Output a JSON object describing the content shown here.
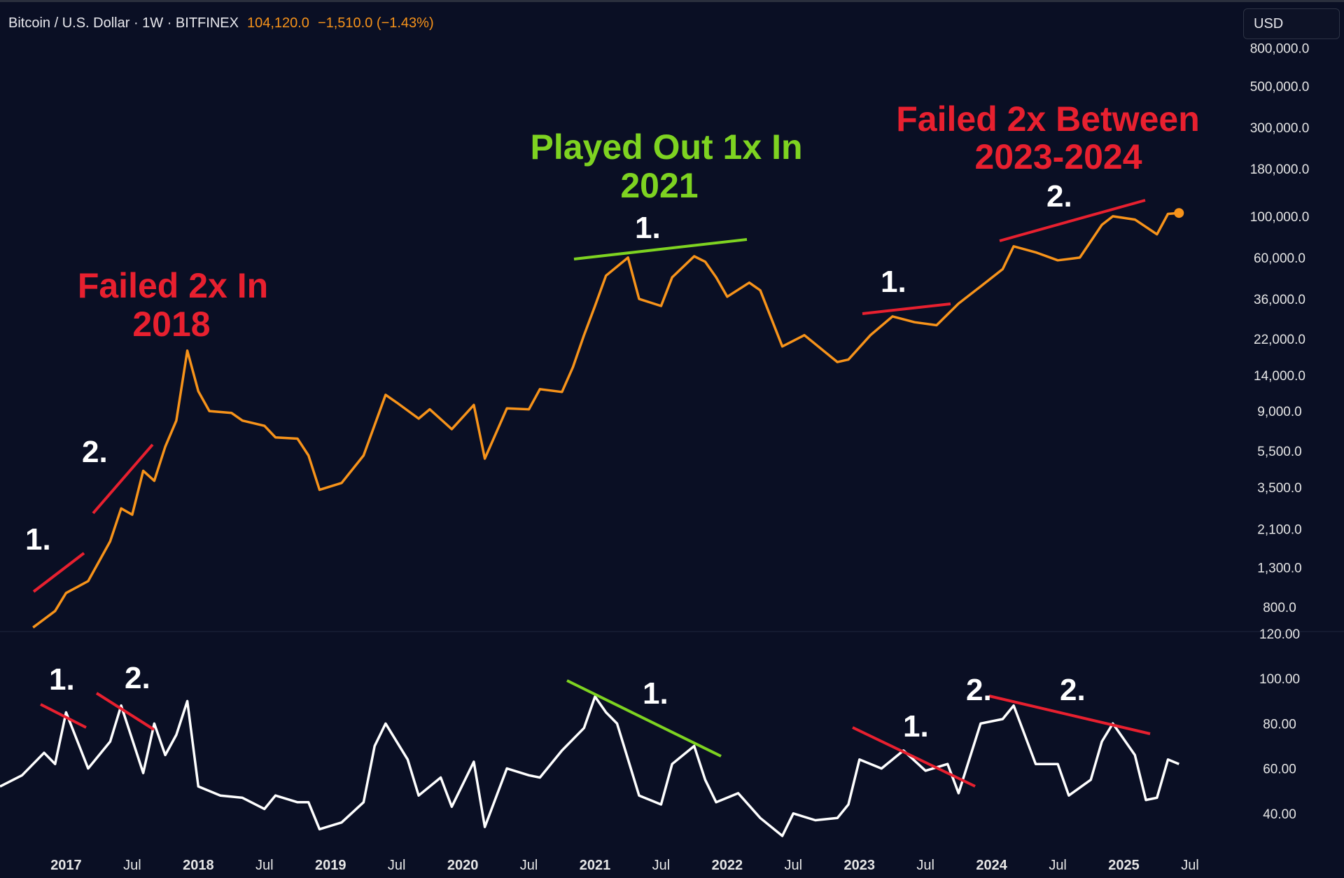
{
  "header": {
    "symbol": "Bitcoin / U.S. Dollar · 1W · BITFINEX",
    "last_price": "104,120.0",
    "change": "−1,510.0 (−1.43%)"
  },
  "currency_button": "USD",
  "colors": {
    "background": "#0a0f24",
    "price_line": "#f7931a",
    "rsi_line": "#ffffff",
    "red_annotation": "#e8202f",
    "green_annotation": "#7ed321",
    "axis_text": "#e6e6e6"
  },
  "annotations": {
    "left_title": [
      "Failed 2x In",
      "2018"
    ],
    "mid_title": [
      "Played Out 1x In",
      "2021"
    ],
    "right_title": [
      "Failed 2x Between",
      "2023-2024"
    ],
    "markers": [
      "1.",
      "2.",
      "2.",
      "1.",
      "1.",
      "2.",
      "1.",
      "2.",
      "1.",
      "1.",
      "2."
    ]
  },
  "chart_data": [
    {
      "type": "line",
      "scale": "log",
      "ylim": [
        600,
        900000
      ],
      "y_ticks": [
        "800,000.0",
        "500,000.0",
        "300,000.0",
        "180,000.0",
        "100,000.0",
        "60,000.0",
        "36,000.0",
        "22,000.0",
        "14,000.0",
        "9,000.0",
        "5,500.0",
        "3,500.0",
        "2,100.0",
        "1,300.0",
        "800.0"
      ],
      "x_ticks": [
        "2017",
        "Jul",
        "2018",
        "Jul",
        "2019",
        "Jul",
        "2020",
        "Jul",
        "2021",
        "Jul",
        "2022",
        "Jul",
        "2023",
        "Jul",
        "2024",
        "Jul",
        "2025",
        "Jul"
      ],
      "xlim": [
        "2016-07",
        "2025-07"
      ],
      "series": [
        {
          "x": [
            "2016-10",
            "2016-12",
            "2017-01",
            "2017-03",
            "2017-05",
            "2017-06",
            "2017-07",
            "2017-08",
            "2017-09",
            "2017-10",
            "2017-11",
            "2017-12",
            "2018-01",
            "2018-02",
            "2018-04",
            "2018-05",
            "2018-07",
            "2018-08",
            "2018-10",
            "2018-11",
            "2018-12",
            "2019-02",
            "2019-04",
            "2019-06",
            "2019-07",
            "2019-09",
            "2019-10",
            "2019-12",
            "2020-02",
            "2020-03",
            "2020-05",
            "2020-07",
            "2020-08",
            "2020-10",
            "2020-11",
            "2020-12",
            "2021-01",
            "2021-02",
            "2021-04",
            "2021-05",
            "2021-07",
            "2021-08",
            "2021-10",
            "2021-11",
            "2021-12",
            "2022-01",
            "2022-03",
            "2022-04",
            "2022-06",
            "2022-08",
            "2022-11",
            "2022-12",
            "2023-02",
            "2023-04",
            "2023-06",
            "2023-08",
            "2023-10",
            "2023-12",
            "2024-02",
            "2024-03",
            "2024-05",
            "2024-07",
            "2024-09",
            "2024-11",
            "2024-12",
            "2025-02",
            "2025-04",
            "2025-05",
            "2025-06"
          ],
          "values": [
            620,
            760,
            950,
            1100,
            1800,
            2700,
            2500,
            4300,
            3800,
            5800,
            8000,
            19000,
            11500,
            9000,
            8800,
            8000,
            7500,
            6500,
            6400,
            5200,
            3400,
            3700,
            5200,
            11000,
            10000,
            8200,
            9200,
            7200,
            9700,
            5000,
            9300,
            9200,
            11800,
            11400,
            15500,
            23000,
            33000,
            48000,
            60000,
            36000,
            33000,
            47000,
            61000,
            57000,
            47000,
            37000,
            44000,
            40000,
            20000,
            23000,
            16500,
            17000,
            23000,
            29000,
            27000,
            26000,
            34000,
            42000,
            52000,
            69000,
            64000,
            58000,
            60000,
            90000,
            100000,
            96000,
            80000,
            103000,
            104120
          ]
        }
      ]
    },
    {
      "type": "line",
      "ylim": [
        25,
        120
      ],
      "y_ticks": [
        "120.00",
        "100.00",
        "80.00",
        "60.00",
        "40.00"
      ],
      "x_ticks": [
        "2017",
        "Jul",
        "2018",
        "Jul",
        "2019",
        "Jul",
        "2020",
        "Jul",
        "2021",
        "Jul",
        "2022",
        "Jul",
        "2023",
        "Jul",
        "2024",
        "Jul",
        "2025",
        "Jul"
      ],
      "xlim": [
        "2016-07",
        "2025-07"
      ],
      "series": [
        {
          "x": [
            "2016-07",
            "2016-09",
            "2016-11",
            "2016-12",
            "2017-01",
            "2017-03",
            "2017-05",
            "2017-06",
            "2017-08",
            "2017-09",
            "2017-10",
            "2017-11",
            "2017-12",
            "2018-01",
            "2018-03",
            "2018-05",
            "2018-07",
            "2018-08",
            "2018-10",
            "2018-11",
            "2018-12",
            "2019-02",
            "2019-04",
            "2019-05",
            "2019-06",
            "2019-08",
            "2019-09",
            "2019-11",
            "2019-12",
            "2020-02",
            "2020-03",
            "2020-05",
            "2020-07",
            "2020-08",
            "2020-10",
            "2020-12",
            "2021-01",
            "2021-02",
            "2021-03",
            "2021-05",
            "2021-07",
            "2021-08",
            "2021-10",
            "2021-11",
            "2021-12",
            "2022-02",
            "2022-04",
            "2022-06",
            "2022-07",
            "2022-09",
            "2022-11",
            "2022-12",
            "2023-01",
            "2023-03",
            "2023-05",
            "2023-07",
            "2023-09",
            "2023-10",
            "2023-12",
            "2024-02",
            "2024-03",
            "2024-05",
            "2024-07",
            "2024-08",
            "2024-10",
            "2024-11",
            "2024-12",
            "2025-02",
            "2025-03",
            "2025-04",
            "2025-05",
            "2025-06"
          ],
          "values": [
            52,
            57,
            67,
            62,
            85,
            60,
            72,
            88,
            58,
            80,
            66,
            75,
            90,
            52,
            48,
            47,
            42,
            48,
            45,
            45,
            33,
            36,
            45,
            70,
            80,
            64,
            48,
            56,
            43,
            63,
            34,
            60,
            57,
            56,
            68,
            78,
            92,
            85,
            80,
            48,
            44,
            62,
            70,
            55,
            45,
            49,
            38,
            30,
            40,
            37,
            38,
            44,
            64,
            60,
            68,
            59,
            62,
            49,
            80,
            82,
            88,
            62,
            62,
            48,
            55,
            72,
            80,
            66,
            46,
            47,
            64,
            62
          ]
        }
      ]
    }
  ]
}
